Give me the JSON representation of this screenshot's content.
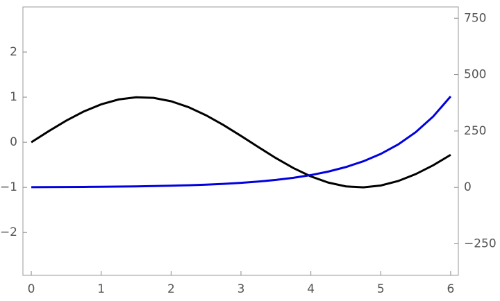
{
  "chart_data": {
    "type": "line",
    "x": [
      0,
      0.25,
      0.5,
      0.75,
      1,
      1.25,
      1.5,
      1.75,
      2,
      2.25,
      2.5,
      2.75,
      3,
      3.25,
      3.5,
      3.75,
      4,
      4.25,
      4.5,
      4.75,
      5,
      5.25,
      5.5,
      5.75,
      6
    ],
    "series": [
      {
        "color": "#000000",
        "values": [
          0,
          0.247,
          0.479,
          0.682,
          0.841,
          0.949,
          0.997,
          0.984,
          0.909,
          0.778,
          0.598,
          0.381,
          0.141,
          -0.108,
          -0.351,
          -0.572,
          -0.757,
          -0.894,
          -0.978,
          -0.999,
          -0.959,
          -0.859,
          -0.706,
          -0.51,
          -0.279
        ]
      },
      {
        "color": "#0000e0",
        "axis": "y2",
        "values": [
          1,
          1.284,
          1.649,
          2.117,
          2.718,
          3.49,
          4.482,
          5.755,
          7.389,
          9.488,
          12.18,
          15.64,
          20.09,
          25.79,
          33.12,
          42.52,
          54.6,
          70.11,
          90.02,
          115.6,
          148.4,
          190.6,
          244.7,
          314.2,
          403.4
        ]
      }
    ],
    "xlim": [
      -0.12,
      6.11
    ],
    "xticks": [
      0,
      1,
      2,
      3,
      4,
      5,
      6
    ],
    "ylim": [
      -2.95,
      3
    ],
    "yticks": [
      {
        "value": -2,
        "label": "−2"
      },
      {
        "value": -1,
        "label": "−1"
      },
      0,
      1,
      2
    ],
    "y2lim": [
      -390,
      800
    ],
    "y2ticks": [
      {
        "value": -250,
        "label": "−250"
      },
      0,
      250,
      500,
      750
    ]
  }
}
